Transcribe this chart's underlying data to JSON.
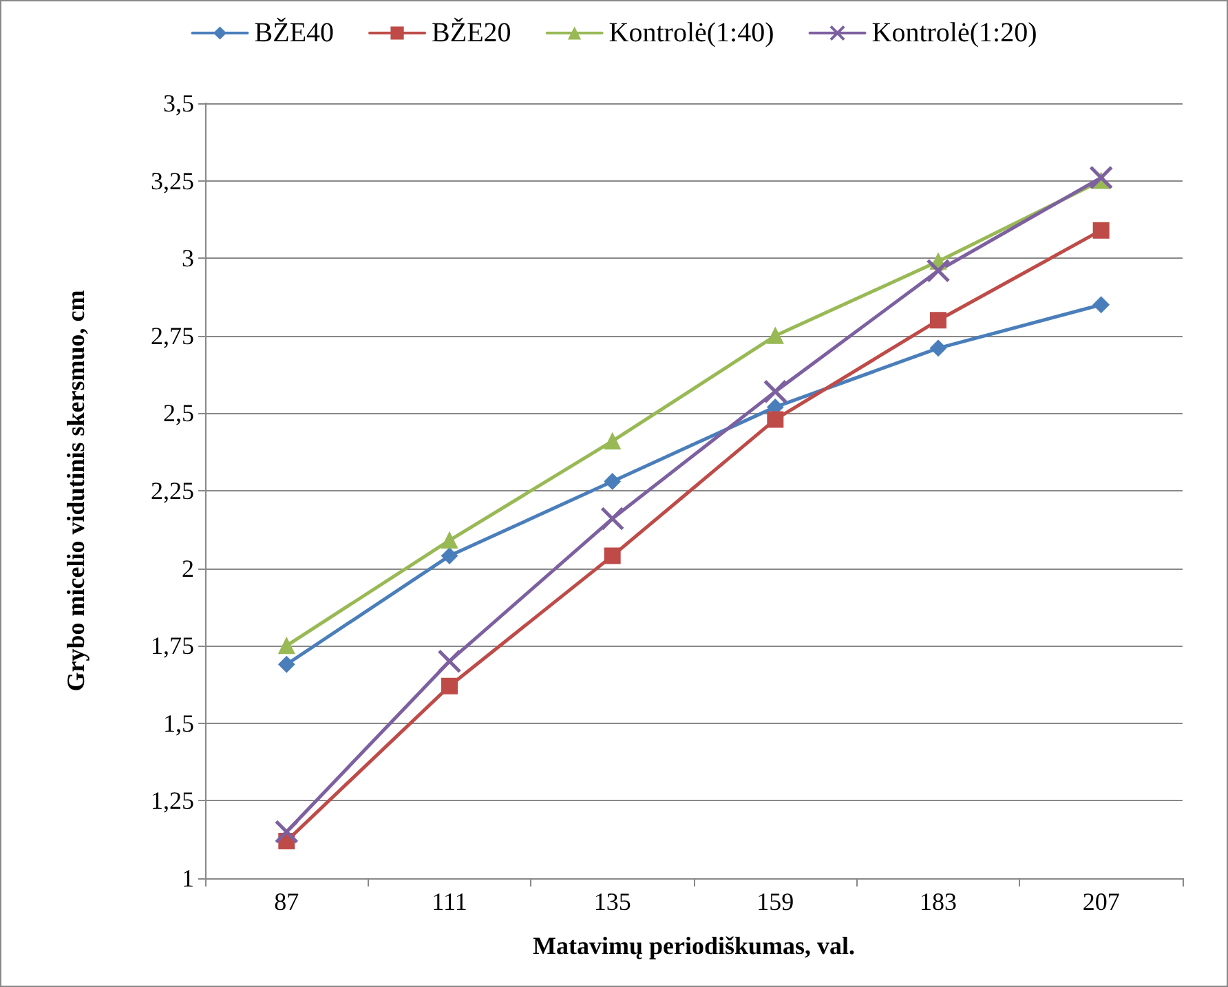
{
  "chart_data": {
    "type": "line",
    "xlabel": "Matavimų periodiškumas, val.",
    "ylabel": "Grybo micelio vidutinis skersmuo, cm",
    "categories": [
      "87",
      "111",
      "135",
      "159",
      "183",
      "207"
    ],
    "series": [
      {
        "name": "BŽE40",
        "color": "#4a7ebb",
        "marker": "diamond",
        "values": [
          1.69,
          2.04,
          2.28,
          2.52,
          2.71,
          2.85
        ]
      },
      {
        "name": "BŽE20",
        "color": "#be4b48",
        "marker": "square",
        "values": [
          1.12,
          1.62,
          2.04,
          2.48,
          2.8,
          3.09
        ]
      },
      {
        "name": "Kontrolė(1:40)",
        "color": "#98b954",
        "marker": "triangle",
        "values": [
          1.75,
          2.09,
          2.41,
          2.75,
          2.99,
          3.25
        ]
      },
      {
        "name": "Kontrolė(1:20)",
        "color": "#7d60a0",
        "marker": "cross",
        "values": [
          1.15,
          1.7,
          2.16,
          2.57,
          2.96,
          3.26
        ]
      }
    ],
    "ylim": [
      1,
      3.5
    ],
    "yticks": [
      1,
      {
        "value": 1.25,
        "label": "1,25"
      },
      {
        "value": 1.5,
        "label": "1,5"
      },
      {
        "value": 1.75,
        "label": "1,75"
      },
      2,
      {
        "value": 2.25,
        "label": "2,25"
      },
      {
        "value": 2.5,
        "label": "2,5"
      },
      {
        "value": 2.75,
        "label": "2,75"
      },
      3,
      {
        "value": 3.25,
        "label": "3,25"
      },
      {
        "value": 3.5,
        "label": "3,5"
      }
    ],
    "grid": "y",
    "legend": "top",
    "line_style": "solid"
  }
}
